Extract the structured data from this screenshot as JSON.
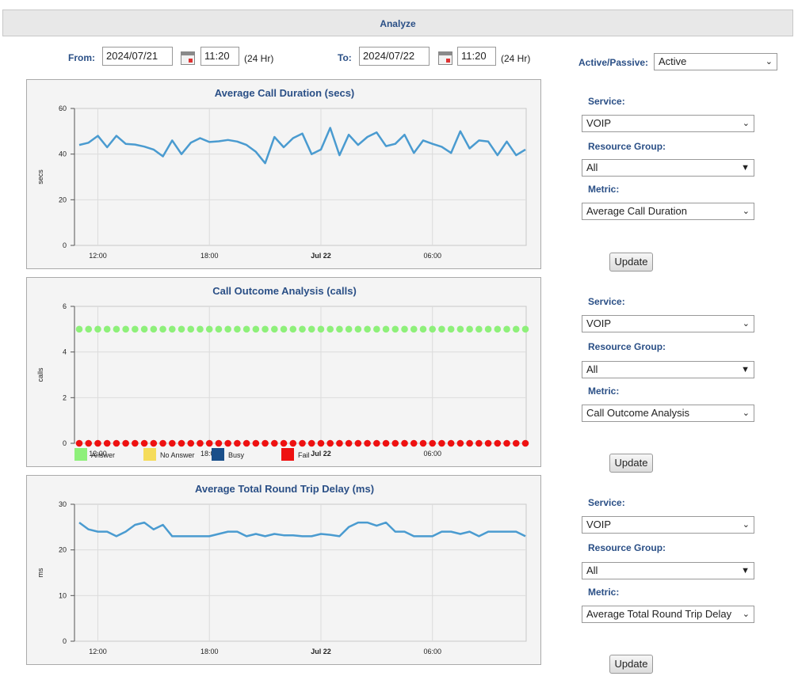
{
  "header": {
    "title": "Analyze"
  },
  "range": {
    "from_label": "From:",
    "from_date": "2024/07/21",
    "from_time": "11:20",
    "to_label": "To:",
    "to_date": "2024/07/22",
    "to_time": "11:20",
    "hr_note": "(24 Hr)"
  },
  "active_passive": {
    "label": "Active/Passive:",
    "value": "Active"
  },
  "panels": [
    {
      "service_label": "Service:",
      "service": "VOIP",
      "group_label": "Resource Group:",
      "group": "All",
      "metric_label": "Metric:",
      "metric": "Average Call Duration",
      "update": "Update"
    },
    {
      "service_label": "Service:",
      "service": "VOIP",
      "group_label": "Resource Group:",
      "group": "All",
      "metric_label": "Metric:",
      "metric": "Call Outcome Analysis",
      "update": "Update"
    },
    {
      "service_label": "Service:",
      "service": "VOIP",
      "group_label": "Resource Group:",
      "group": "All",
      "metric_label": "Metric:",
      "metric": "Average Total Round Trip Delay",
      "update": "Update"
    }
  ],
  "icons": {
    "calendar": "calendar-icon",
    "dropdown": "chevron-down-icon"
  },
  "colors": {
    "line": "#4a9bd0",
    "answer": "#8ef07a",
    "no_answer": "#f5dc5a",
    "busy": "#1a4f8a",
    "fail": "#ee1111",
    "title": "#2a4f86"
  },
  "chart_data": [
    {
      "type": "line",
      "title": "Average Call Duration (secs)",
      "ylabel": "secs",
      "ylim": [
        0,
        60
      ],
      "yticks": [
        0,
        20,
        40,
        60
      ],
      "x_start": "2024-07-21 11:00",
      "x_step_minutes": 30,
      "xticks": [
        {
          "label": "12:00",
          "index": 2,
          "bold": false
        },
        {
          "label": "18:00",
          "index": 14,
          "bold": false
        },
        {
          "label": "Jul 22",
          "index": 26,
          "bold": true
        },
        {
          "label": "06:00",
          "index": 38,
          "bold": false
        }
      ],
      "series": [
        {
          "values": [
            44,
            45,
            48,
            43,
            48,
            44.5,
            44.2,
            43.3,
            42,
            39,
            46,
            40,
            45,
            47,
            45.3,
            45.6,
            46.2,
            45.5,
            44,
            41,
            36,
            47.5,
            43,
            47,
            49,
            40,
            42,
            51.5,
            39.5,
            48.5,
            44,
            47.5,
            49.5,
            43.5,
            44.5,
            48.5,
            40.5,
            46,
            44.5,
            43.2,
            40.5,
            50,
            42.5,
            46,
            45.5,
            39.5,
            45.5,
            39.5,
            42
          ]
        }
      ]
    },
    {
      "type": "scatter",
      "title": "Call Outcome Analysis (calls)",
      "ylabel": "calls",
      "ylim": [
        0,
        6
      ],
      "yticks": [
        0,
        2,
        4,
        6
      ],
      "x_start": "2024-07-21 11:00",
      "x_step_minutes": 30,
      "xticks": [
        {
          "label": "12:00",
          "index": 2,
          "bold": false
        },
        {
          "label": "18:00",
          "index": 14,
          "bold": false
        },
        {
          "label": "Jul 22",
          "index": 26,
          "bold": true
        },
        {
          "label": "06:00",
          "index": 38,
          "bold": false
        }
      ],
      "legend": [
        {
          "name": "Answer",
          "color": "#8ef07a"
        },
        {
          "name": "No Answer",
          "color": "#f5dc5a"
        },
        {
          "name": "Busy",
          "color": "#1a4f8a"
        },
        {
          "name": "Fail",
          "color": "#ee1111"
        }
      ],
      "series": [
        {
          "name": "Answer",
          "constant": 5,
          "count": 49,
          "color": "#8ef07a"
        },
        {
          "name": "Fail",
          "constant": 0,
          "count": 49,
          "color": "#ee1111"
        }
      ]
    },
    {
      "type": "line",
      "title": "Average Total Round Trip Delay (ms)",
      "ylabel": "ms",
      "ylim": [
        0,
        30
      ],
      "yticks": [
        0,
        10,
        20,
        30
      ],
      "x_start": "2024-07-21 11:00",
      "x_step_minutes": 30,
      "xticks": [
        {
          "label": "12:00",
          "index": 2,
          "bold": false
        },
        {
          "label": "18:00",
          "index": 14,
          "bold": false
        },
        {
          "label": "Jul 22",
          "index": 26,
          "bold": true
        },
        {
          "label": "06:00",
          "index": 38,
          "bold": false
        }
      ],
      "series": [
        {
          "values": [
            26,
            24.5,
            24,
            24,
            23,
            24,
            25.5,
            26,
            24.5,
            25.5,
            23,
            23,
            23,
            23,
            23,
            23.5,
            24,
            24,
            23,
            23.5,
            23,
            23.5,
            23.2,
            23.2,
            23,
            23,
            23.5,
            23.3,
            23,
            25,
            26,
            26,
            25.3,
            26,
            24,
            24,
            23,
            23,
            23,
            24,
            24,
            23.5,
            24,
            23,
            24,
            24,
            24,
            24,
            23
          ]
        }
      ]
    }
  ]
}
